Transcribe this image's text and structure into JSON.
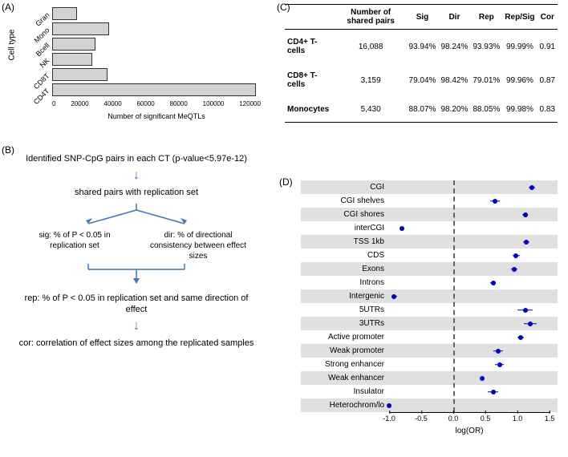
{
  "panelA": {
    "label": "(A)",
    "y_axis_title": "Cell type",
    "x_axis_title": "Number of significant MeQTLs",
    "x_max": 125000,
    "ticks": [
      "0",
      "20000",
      "40000",
      "60000",
      "80000",
      "100000",
      "120000"
    ],
    "bars": [
      {
        "label": "Gran",
        "value": 15000
      },
      {
        "label": "Mono",
        "value": 34000
      },
      {
        "label": "Bcell",
        "value": 26000
      },
      {
        "label": "NK",
        "value": 24000
      },
      {
        "label": "CD8T",
        "value": 33000
      },
      {
        "label": "CD4T",
        "value": 122000
      }
    ],
    "bar_color": "#d3d3d3",
    "bar_border": "#333333"
  },
  "panelB": {
    "label": "(B)",
    "step1": "Identified SNP-CpG pairs in each CT\n(p-value<5.97e-12)",
    "step2": "shared pairs with\nreplication set",
    "split_left": "sig: % of P < 0.05\nin replication set",
    "split_right": "dir: % of directional\nconsistency between\neffect sizes",
    "step3": "rep: % of P < 0.05 in replication set\nand same direction of effect",
    "step4": "cor: correlation of effect sizes among\nthe replicated samples",
    "arrow_color": "#4472c4"
  },
  "panelC": {
    "label": "(C)",
    "columns": [
      "",
      "Number of shared pairs",
      "Sig",
      "Dir",
      "Rep",
      "Rep/Sig",
      "Cor"
    ],
    "rows": [
      [
        "CD4+ T-cells",
        "16,088",
        "93.94%",
        "98.24%",
        "93.93%",
        "99.99%",
        "0.91"
      ],
      [
        "CD8+ T-cells",
        "3,159",
        "79.04%",
        "98.42%",
        "79.01%",
        "99.96%",
        "0.87"
      ],
      [
        "Monocytes",
        "5,430",
        "88.07%",
        "98.20%",
        "88.05%",
        "99.98%",
        "0.83"
      ]
    ]
  },
  "panelD": {
    "label": "(D)",
    "x_axis_title": "log(OR)",
    "x_min": -1.0,
    "x_max": 1.5,
    "ticks": [
      "-1.0",
      "-0.5",
      "0.0",
      "0.5",
      "1.0",
      "1.5"
    ],
    "point_color": "#0000cd",
    "zero_line_color": "#666666",
    "stripe_color": "#e0e0e0",
    "rows": [
      {
        "label": "CGI",
        "or": 1.22,
        "lo": 1.17,
        "hi": 1.27,
        "striped": true
      },
      {
        "label": "CGI shelves",
        "or": 0.65,
        "lo": 0.58,
        "hi": 0.72,
        "striped": false
      },
      {
        "label": "CGI shores",
        "or": 1.12,
        "lo": 1.08,
        "hi": 1.16,
        "striped": true
      },
      {
        "label": "interCGI",
        "or": -0.8,
        "lo": -0.84,
        "hi": -0.76,
        "striped": false
      },
      {
        "label": "TSS 1kb",
        "or": 1.14,
        "lo": 1.09,
        "hi": 1.19,
        "striped": true
      },
      {
        "label": "CDS",
        "or": 0.98,
        "lo": 0.92,
        "hi": 1.04,
        "striped": false
      },
      {
        "label": "Exons",
        "or": 0.95,
        "lo": 0.9,
        "hi": 1.0,
        "striped": true
      },
      {
        "label": "Introns",
        "or": 0.62,
        "lo": 0.58,
        "hi": 0.66,
        "striped": false
      },
      {
        "label": "Intergenic",
        "or": -0.92,
        "lo": -0.96,
        "hi": -0.88,
        "striped": true
      },
      {
        "label": "5UTRs",
        "or": 1.12,
        "lo": 1.0,
        "hi": 1.24,
        "striped": false
      },
      {
        "label": "3UTRs",
        "or": 1.2,
        "lo": 1.1,
        "hi": 1.3,
        "striped": true
      },
      {
        "label": "Active promoter",
        "or": 1.05,
        "lo": 1.0,
        "hi": 1.1,
        "striped": false
      },
      {
        "label": "Weak promoter",
        "or": 0.7,
        "lo": 0.63,
        "hi": 0.77,
        "striped": true
      },
      {
        "label": "Strong enhancer",
        "or": 0.72,
        "lo": 0.65,
        "hi": 0.79,
        "striped": false
      },
      {
        "label": "Weak enhancer",
        "or": 0.45,
        "lo": 0.42,
        "hi": 0.48,
        "striped": true
      },
      {
        "label": "Insulator",
        "or": 0.62,
        "lo": 0.54,
        "hi": 0.7,
        "striped": false
      },
      {
        "label": "Heterochrom/lo",
        "or": -1.0,
        "lo": -1.03,
        "hi": -0.97,
        "striped": true
      }
    ]
  }
}
